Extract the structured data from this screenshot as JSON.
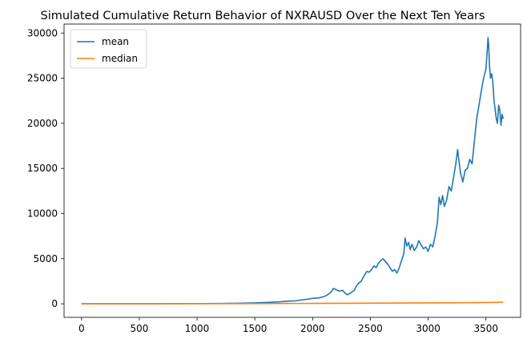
{
  "chart_data": {
    "type": "line",
    "title": "Simulated Cumulative Return Behavior of NXRAUSD Over the Next Ten Years",
    "xlabel": "",
    "ylabel": "",
    "xlim": [
      -151,
      3800
    ],
    "ylim": [
      -1500,
      31000
    ],
    "x_ticks": [
      0,
      500,
      1000,
      1500,
      2000,
      2500,
      3000,
      3500
    ],
    "y_ticks": [
      0,
      5000,
      10000,
      15000,
      20000,
      25000,
      30000
    ],
    "grid": false,
    "legend_position": "top-left",
    "series": [
      {
        "name": "mean",
        "color": "#1f77b4",
        "points": [
          [
            0,
            1
          ],
          [
            200,
            3
          ],
          [
            400,
            5
          ],
          [
            600,
            8
          ],
          [
            800,
            12
          ],
          [
            1000,
            20
          ],
          [
            1200,
            40
          ],
          [
            1400,
            70
          ],
          [
            1500,
            100
          ],
          [
            1600,
            150
          ],
          [
            1700,
            200
          ],
          [
            1750,
            260
          ],
          [
            1800,
            300
          ],
          [
            1850,
            330
          ],
          [
            1900,
            420
          ],
          [
            1950,
            500
          ],
          [
            2000,
            600
          ],
          [
            2050,
            650
          ],
          [
            2100,
            800
          ],
          [
            2130,
            1000
          ],
          [
            2160,
            1300
          ],
          [
            2180,
            1700
          ],
          [
            2200,
            1600
          ],
          [
            2230,
            1400
          ],
          [
            2260,
            1500
          ],
          [
            2280,
            1200
          ],
          [
            2300,
            1000
          ],
          [
            2330,
            1200
          ],
          [
            2360,
            1500
          ],
          [
            2380,
            2000
          ],
          [
            2400,
            2300
          ],
          [
            2420,
            2500
          ],
          [
            2450,
            3200
          ],
          [
            2470,
            3600
          ],
          [
            2490,
            3500
          ],
          [
            2510,
            3800
          ],
          [
            2530,
            4200
          ],
          [
            2550,
            4000
          ],
          [
            2570,
            4500
          ],
          [
            2590,
            4800
          ],
          [
            2610,
            5000
          ],
          [
            2630,
            4700
          ],
          [
            2650,
            4400
          ],
          [
            2670,
            4000
          ],
          [
            2690,
            3600
          ],
          [
            2710,
            3800
          ],
          [
            2730,
            3400
          ],
          [
            2750,
            4000
          ],
          [
            2770,
            4800
          ],
          [
            2790,
            5600
          ],
          [
            2800,
            7300
          ],
          [
            2815,
            6400
          ],
          [
            2830,
            6800
          ],
          [
            2845,
            6000
          ],
          [
            2860,
            6600
          ],
          [
            2880,
            5900
          ],
          [
            2900,
            6300
          ],
          [
            2920,
            7000
          ],
          [
            2940,
            6500
          ],
          [
            2960,
            6100
          ],
          [
            2980,
            6300
          ],
          [
            3000,
            5800
          ],
          [
            3020,
            6600
          ],
          [
            3040,
            6300
          ],
          [
            3060,
            7500
          ],
          [
            3080,
            9000
          ],
          [
            3095,
            11800
          ],
          [
            3110,
            11000
          ],
          [
            3125,
            12000
          ],
          [
            3140,
            10800
          ],
          [
            3160,
            11500
          ],
          [
            3180,
            13000
          ],
          [
            3200,
            12500
          ],
          [
            3220,
            14000
          ],
          [
            3240,
            15600
          ],
          [
            3255,
            17100
          ],
          [
            3265,
            16000
          ],
          [
            3280,
            14500
          ],
          [
            3300,
            13500
          ],
          [
            3320,
            14800
          ],
          [
            3340,
            15000
          ],
          [
            3360,
            16000
          ],
          [
            3380,
            15500
          ],
          [
            3400,
            18000
          ],
          [
            3420,
            20500
          ],
          [
            3440,
            22000
          ],
          [
            3460,
            23600
          ],
          [
            3480,
            25000
          ],
          [
            3500,
            26000
          ],
          [
            3510,
            27800
          ],
          [
            3518,
            29500
          ],
          [
            3525,
            28500
          ],
          [
            3530,
            26500
          ],
          [
            3540,
            25000
          ],
          [
            3550,
            25500
          ],
          [
            3560,
            24500
          ],
          [
            3570,
            22500
          ],
          [
            3580,
            21500
          ],
          [
            3590,
            20500
          ],
          [
            3600,
            20000
          ],
          [
            3610,
            22000
          ],
          [
            3620,
            21500
          ],
          [
            3630,
            19800
          ],
          [
            3640,
            21000
          ],
          [
            3650,
            20500
          ]
        ]
      },
      {
        "name": "median",
        "color": "#ff7f0e",
        "points": [
          [
            0,
            1
          ],
          [
            500,
            3
          ],
          [
            1000,
            10
          ],
          [
            1500,
            25
          ],
          [
            2000,
            45
          ],
          [
            2500,
            70
          ],
          [
            3000,
            100
          ],
          [
            3300,
            120
          ],
          [
            3500,
            150
          ],
          [
            3650,
            170
          ]
        ]
      }
    ]
  }
}
